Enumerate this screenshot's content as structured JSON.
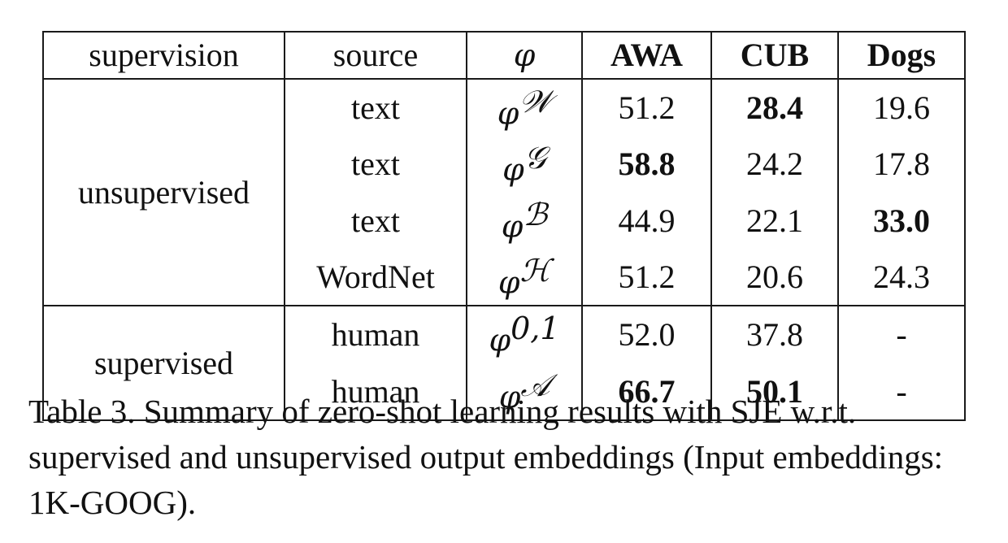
{
  "table": {
    "headers": {
      "supervision": "supervision",
      "source": "source",
      "phi": "φ",
      "awa": "AWA",
      "cub": "CUB",
      "dogs": "Dogs"
    },
    "groups": {
      "unsupervised": "unsupervised",
      "supervised": "supervised"
    },
    "rows": [
      {
        "source": "text",
        "phi": "φ",
        "phi_sup": "𝒲",
        "awa": "51.2",
        "cub": "28.4",
        "dogs": "19.6",
        "bold": [
          "cub"
        ]
      },
      {
        "source": "text",
        "phi": "φ",
        "phi_sup": "𝒢",
        "awa": "58.8",
        "cub": "24.2",
        "dogs": "17.8",
        "bold": [
          "awa"
        ]
      },
      {
        "source": "text",
        "phi": "φ",
        "phi_sup": "ℬ",
        "awa": "44.9",
        "cub": "22.1",
        "dogs": "33.0",
        "bold": [
          "dogs"
        ]
      },
      {
        "source": "WordNet",
        "phi": "φ",
        "phi_sup": "ℋ",
        "awa": "51.2",
        "cub": "20.6",
        "dogs": "24.3",
        "bold": []
      },
      {
        "source": "human",
        "phi": "φ",
        "phi_sup": "0,1",
        "awa": "52.0",
        "cub": "37.8",
        "dogs": "-",
        "bold": []
      },
      {
        "source": "human",
        "phi": "φ",
        "phi_sup": "𝒜",
        "awa": "66.7",
        "cub": "50.1",
        "dogs": "-",
        "bold": [
          "awa",
          "cub"
        ]
      }
    ]
  },
  "caption": "Table 3. Summary of zero-shot learning results with SJE w.r.t. supervised and unsupervised output embeddings (Input embeddings: 1K-GOOG)."
}
